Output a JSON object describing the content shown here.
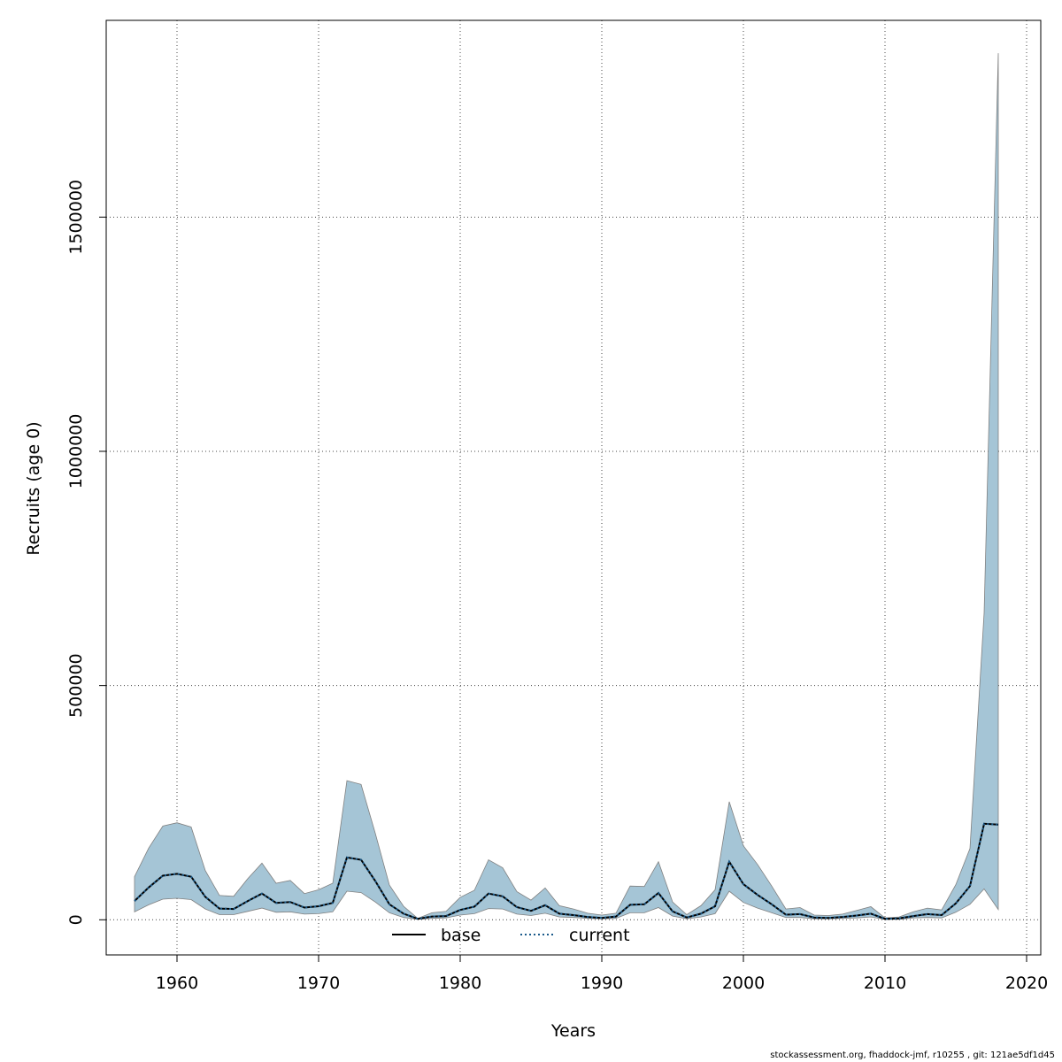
{
  "chart_data": {
    "type": "area",
    "xlabel": "Years",
    "ylabel": "Recruits (age 0)",
    "xlim": [
      1955,
      2021
    ],
    "ylim": [
      -75000,
      1920000
    ],
    "xticks": [
      1960,
      1970,
      1980,
      1990,
      2000,
      2010,
      2020
    ],
    "yticks": [
      0,
      500000,
      1000000,
      1500000
    ],
    "grid": true,
    "legend_position": "bottom-center",
    "band_color": "#a5c5d6",
    "band_edge_color": "#808080",
    "x": [
      1957,
      1958,
      1959,
      1960,
      1961,
      1962,
      1963,
      1964,
      1965,
      1966,
      1967,
      1968,
      1969,
      1970,
      1971,
      1972,
      1973,
      1974,
      1975,
      1976,
      1977,
      1978,
      1979,
      1980,
      1981,
      1982,
      1983,
      1984,
      1985,
      1986,
      1987,
      1988,
      1989,
      1990,
      1991,
      1992,
      1993,
      1994,
      1995,
      1996,
      1997,
      1998,
      1999,
      2000,
      2001,
      2002,
      2003,
      2004,
      2005,
      2006,
      2007,
      2008,
      2009,
      2010,
      2011,
      2012,
      2013,
      2014,
      2015,
      2016,
      2017,
      2018
    ],
    "band": {
      "upper": [
        92000,
        153000,
        200000,
        207000,
        198000,
        105000,
        52000,
        50000,
        88000,
        121000,
        78000,
        84000,
        56000,
        64000,
        78000,
        297000,
        289000,
        185000,
        74000,
        29000,
        3000,
        15000,
        18000,
        48000,
        63000,
        128000,
        111000,
        60000,
        42000,
        68000,
        30000,
        23000,
        14000,
        10000,
        14000,
        72000,
        71000,
        124000,
        38000,
        11000,
        30000,
        64000,
        252000,
        158000,
        118000,
        72000,
        23000,
        26000,
        10000,
        9000,
        12000,
        20000,
        28000,
        4000,
        6000,
        17000,
        25000,
        21000,
        75000,
        152000,
        655000,
        1850000
      ],
      "lower": [
        17000,
        32000,
        44000,
        46000,
        43000,
        23000,
        11000,
        11000,
        18000,
        25000,
        16000,
        17000,
        12000,
        13000,
        17000,
        61000,
        58000,
        38000,
        15000,
        5000,
        1000,
        3000,
        4000,
        10000,
        13000,
        24000,
        23000,
        12000,
        9000,
        14000,
        6000,
        5000,
        3000,
        2000,
        3000,
        15000,
        15000,
        26000,
        8000,
        2000,
        6000,
        13000,
        61000,
        37000,
        25000,
        15000,
        5000,
        5000,
        2000,
        2000,
        3000,
        4000,
        6000,
        1000,
        1000,
        4000,
        5000,
        4000,
        16000,
        33000,
        66000,
        22000
      ]
    },
    "series": [
      {
        "name": "base",
        "style": "solid",
        "color": "#000000",
        "values": [
          40000,
          69000,
          94000,
          98000,
          92000,
          49000,
          24000,
          23000,
          40000,
          56000,
          36000,
          38000,
          26000,
          29000,
          36000,
          133000,
          128000,
          83000,
          33000,
          13000,
          2000,
          7000,
          8000,
          21000,
          28000,
          56000,
          50000,
          27000,
          19000,
          31000,
          13000,
          10000,
          6000,
          4000,
          7000,
          32000,
          33000,
          57000,
          18000,
          5000,
          13000,
          29000,
          124000,
          76000,
          53000,
          33000,
          11000,
          12000,
          5000,
          4000,
          6000,
          9000,
          13000,
          2000,
          3000,
          8000,
          12000,
          10000,
          35000,
          72000,
          205000,
          203000
        ]
      },
      {
        "name": "current",
        "style": "dotted",
        "color": "#1a5a8a",
        "values": [
          40000,
          69000,
          94000,
          98000,
          92000,
          49000,
          24000,
          23000,
          40000,
          56000,
          36000,
          38000,
          26000,
          29000,
          36000,
          133000,
          128000,
          83000,
          33000,
          13000,
          2000,
          7000,
          8000,
          21000,
          28000,
          56000,
          50000,
          27000,
          19000,
          31000,
          13000,
          10000,
          6000,
          4000,
          7000,
          32000,
          33000,
          57000,
          18000,
          5000,
          13000,
          29000,
          124000,
          76000,
          53000,
          33000,
          11000,
          12000,
          5000,
          4000,
          6000,
          9000,
          13000,
          2000,
          3000,
          8000,
          12000,
          10000,
          35000,
          72000,
          205000,
          203000
        ]
      }
    ]
  },
  "footer": "stockassessment.org, fhaddock-jmf, r10255 , git: 121ae5df1d45"
}
